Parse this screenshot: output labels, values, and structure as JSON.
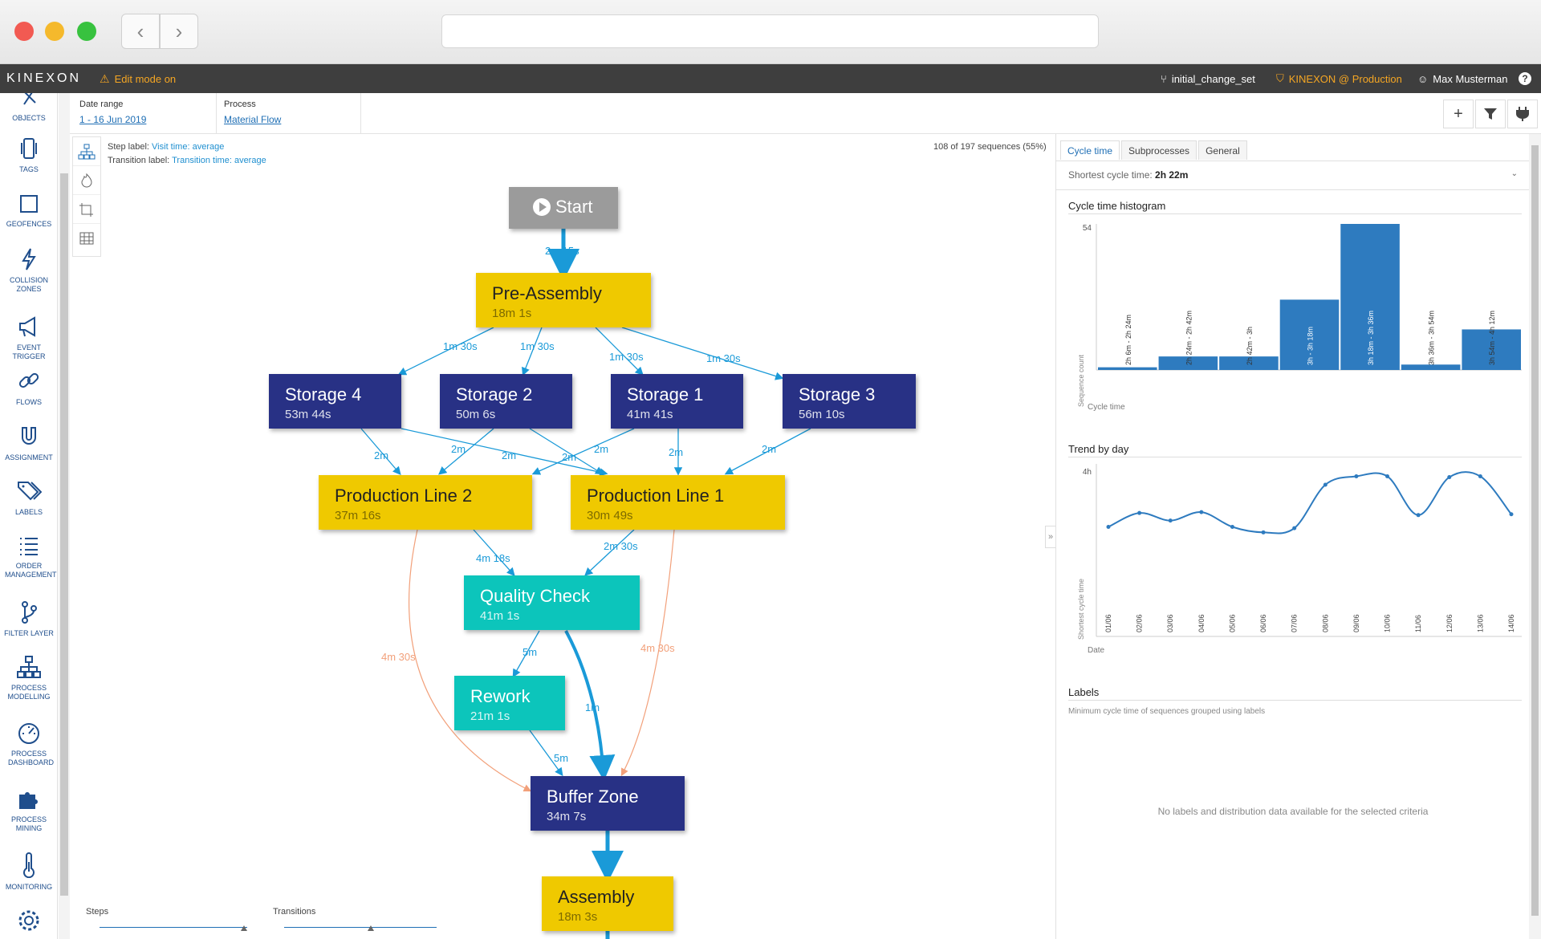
{
  "app": {
    "brand": "KINEXON",
    "edit_mode": "Edit mode on",
    "changeset": "initial_change_set",
    "org": "KINEXON @ Production",
    "user": "Max Musterman",
    "help": "?"
  },
  "sidebar": {
    "items": [
      {
        "label": "OBJECTS",
        "icon": "objects-icon"
      },
      {
        "label": "TAGS",
        "icon": "tag-device-icon"
      },
      {
        "label": "GEOFENCES",
        "icon": "square-icon"
      },
      {
        "label": "COLLISION ZONES",
        "icon": "lightning-icon"
      },
      {
        "label": "EVENT TRIGGER",
        "icon": "megaphone-icon"
      },
      {
        "label": "FLOWS",
        "icon": "link-icon"
      },
      {
        "label": "ASSIGNMENT",
        "icon": "magnet-icon"
      },
      {
        "label": "LABELS",
        "icon": "labels-icon"
      },
      {
        "label": "ORDER MANAGEMENT",
        "icon": "list-icon"
      },
      {
        "label": "FILTER LAYER",
        "icon": "branch-icon"
      },
      {
        "label": "PROCESS MODELLING",
        "icon": "hierarchy-icon"
      },
      {
        "label": "PROCESS DASHBOARD",
        "icon": "gauge-icon"
      },
      {
        "label": "PROCESS MINING",
        "icon": "puzzle-icon"
      },
      {
        "label": "MONITORING",
        "icon": "thermometer-icon"
      },
      {
        "label": "",
        "icon": "gear-icon"
      }
    ]
  },
  "filters": {
    "date_label": "Date range",
    "date_value": "1 - 16 Jun 2019",
    "process_label": "Process",
    "process_value": "Material Flow"
  },
  "toolbar": {
    "add": "+",
    "filter": "filter-icon",
    "plug": "plug-icon"
  },
  "map": {
    "step_label_prefix": "Step label:",
    "step_label_value": "Visit time: average",
    "transition_label_prefix": "Transition label:",
    "transition_label_value": "Transition time: average",
    "sequences": "108 of 197 sequences (55%)",
    "steps_label": "Steps",
    "transitions_label": "Transitions",
    "nodes": [
      {
        "title": "Start",
        "sub": ""
      },
      {
        "title": "Pre-Assembly",
        "sub": "18m 1s"
      },
      {
        "title": "Storage 4",
        "sub": "53m 44s"
      },
      {
        "title": "Storage 2",
        "sub": "50m 6s"
      },
      {
        "title": "Storage 1",
        "sub": "41m 41s"
      },
      {
        "title": "Storage 3",
        "sub": "56m 10s"
      },
      {
        "title": "Production Line 2",
        "sub": "37m 16s"
      },
      {
        "title": "Production Line 1",
        "sub": "30m 49s"
      },
      {
        "title": "Quality Check",
        "sub": "41m 1s"
      },
      {
        "title": "Rework",
        "sub": "21m 1s"
      },
      {
        "title": "Buffer Zone",
        "sub": "34m 7s"
      },
      {
        "title": "Assembly",
        "sub": "18m 3s"
      }
    ],
    "edges": [
      "2m 15s",
      "1m 30s",
      "1m 30s",
      "1m 30s",
      "1m 30s",
      "2m",
      "2m",
      "2m",
      "2m",
      "2m",
      "2m",
      "2m",
      "4m 18s",
      "2m 30s",
      "5m",
      "1m",
      "5m",
      "4m 30s",
      "4m 30s",
      "1m"
    ]
  },
  "panel": {
    "tabs": [
      "Cycle time",
      "Subprocesses",
      "General"
    ],
    "shortest_label": "Shortest cycle time:",
    "shortest_value": "2h 22m",
    "hist_title": "Cycle time histogram",
    "hist_ylabel": "Sequence count",
    "hist_xlabel": "Cycle time",
    "trend_title": "Trend by day",
    "trend_ylabel": "Shortest cycle time",
    "trend_xlabel": "Date",
    "labels_title": "Labels",
    "labels_sub": "Minimum cycle time of sequences grouped using labels",
    "labels_empty": "No labels and distribution data available for the selected criteria"
  },
  "chart_data": [
    {
      "type": "bar",
      "categories": [
        "2h 6m - 2h 24m",
        "2h 24m - 2h 42m",
        "2h 42m - 3h",
        "3h - 3h 18m",
        "3h 18m - 3h 36m",
        "3h 36m - 3h 54m",
        "3h 54m - 4h 12m"
      ],
      "values": [
        1,
        5,
        5,
        26,
        54,
        2,
        15
      ],
      "ylim": [
        0,
        54
      ],
      "yticks": [
        "54"
      ],
      "xlabel": "Cycle time",
      "ylabel": "Sequence count"
    },
    {
      "type": "line",
      "x": [
        "01/06",
        "02/06",
        "03/06",
        "04/06",
        "05/06",
        "06/06",
        "07/06",
        "08/06",
        "09/06",
        "10/06",
        "11/06",
        "12/06",
        "13/06",
        "14/06"
      ],
      "y_hours": [
        2.6,
        2.93,
        2.75,
        2.95,
        2.6,
        2.47,
        2.57,
        3.6,
        3.8,
        3.8,
        2.88,
        3.78,
        3.8,
        2.9
      ],
      "ylim": [
        0,
        4
      ],
      "yticks": [
        "4h"
      ],
      "xlabel": "Date",
      "ylabel": "Shortest cycle time"
    }
  ]
}
